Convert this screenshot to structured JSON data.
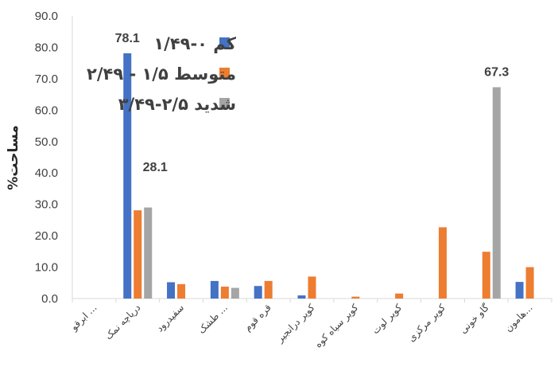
{
  "chart_data": {
    "type": "bar",
    "ylabel": "%مساحت",
    "ylim": [
      0,
      90
    ],
    "ytick_step": 10,
    "ytick_labels": [
      "0.0",
      "10.0",
      "20.0",
      "30.0",
      "40.0",
      "50.0",
      "60.0",
      "70.0",
      "80.0",
      "90.0"
    ],
    "grid": false,
    "legend_position": "top-right",
    "categories": [
      "ابرقو ...",
      "دریاچه نمک",
      "سفیدرود",
      "طشک ...",
      "قره قوم",
      "کویر درانجیر",
      "کویر سیاه کوه",
      "کویر لوت",
      "کویر مرکزی",
      "گاو خونی",
      "هامون..."
    ],
    "series": [
      {
        "name": "کم ۰-۱/۴۹",
        "color": "#4472c4",
        "values": [
          0,
          78.1,
          5.2,
          5.6,
          4.0,
          1.0,
          0,
          0,
          0,
          0,
          5.3
        ]
      },
      {
        "name": "متوسط ۱/۵ - ۲/۴۹",
        "color": "#ed7d31",
        "values": [
          0,
          28.1,
          4.6,
          3.8,
          5.6,
          7.0,
          0.6,
          1.6,
          22.7,
          14.9,
          10.0
        ]
      },
      {
        "name": "شدید ۲/۵-۳/۴۹",
        "color": "#a5a5a5",
        "values": [
          0,
          29.0,
          0,
          3.4,
          0,
          0,
          0,
          0,
          0,
          67.3,
          0
        ]
      }
    ],
    "data_labels": [
      {
        "series": 0,
        "category": 1,
        "text": "78.1"
      },
      {
        "series": 1,
        "category": 1,
        "text": "28.1"
      },
      {
        "series": 2,
        "category": 9,
        "text": "67.3"
      }
    ]
  }
}
